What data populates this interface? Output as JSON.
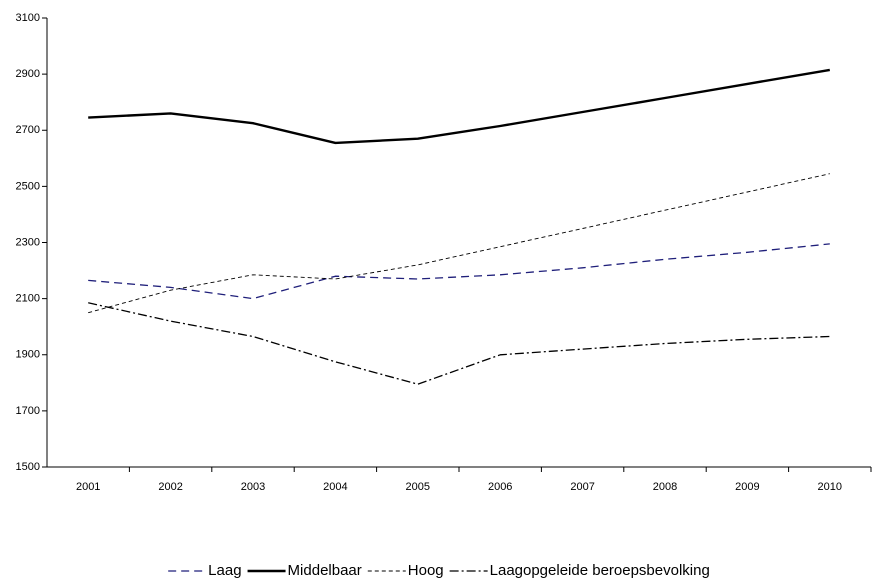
{
  "chart_data": {
    "type": "line",
    "categories": [
      "2001",
      "2002",
      "2003",
      "2004",
      "2005",
      "2006",
      "2007",
      "2008",
      "2009",
      "2010"
    ],
    "series": [
      {
        "name": "Laag",
        "color": "#1f1f7a",
        "dash": "8,5",
        "width": 1.3,
        "values": [
          2165,
          2140,
          2100,
          2180,
          2170,
          2185,
          2210,
          2240,
          2265,
          2295
        ]
      },
      {
        "name": "Middelbaar",
        "color": "#000000",
        "dash": "none",
        "width": 2.4,
        "values": [
          2745,
          2760,
          2725,
          2655,
          2670,
          2715,
          2765,
          2815,
          2865,
          2915
        ]
      },
      {
        "name": "Hoog",
        "color": "#000000",
        "dash": "4,3",
        "width": 0.9,
        "values": [
          2050,
          2130,
          2185,
          2170,
          2220,
          2285,
          2350,
          2415,
          2480,
          2545
        ]
      },
      {
        "name": "Laagopgeleide beroepsbevolking",
        "color": "#000000",
        "dash": "9,3,2,3",
        "width": 1.3,
        "values": [
          2085,
          2020,
          1965,
          1875,
          1795,
          1900,
          1920,
          1940,
          1955,
          1965
        ]
      }
    ],
    "ylim": [
      1500,
      3100
    ],
    "yticks": [
      1500,
      1700,
      1900,
      2100,
      2300,
      2500,
      2700,
      2900,
      3100
    ],
    "grid": false,
    "legend": "bottom"
  }
}
